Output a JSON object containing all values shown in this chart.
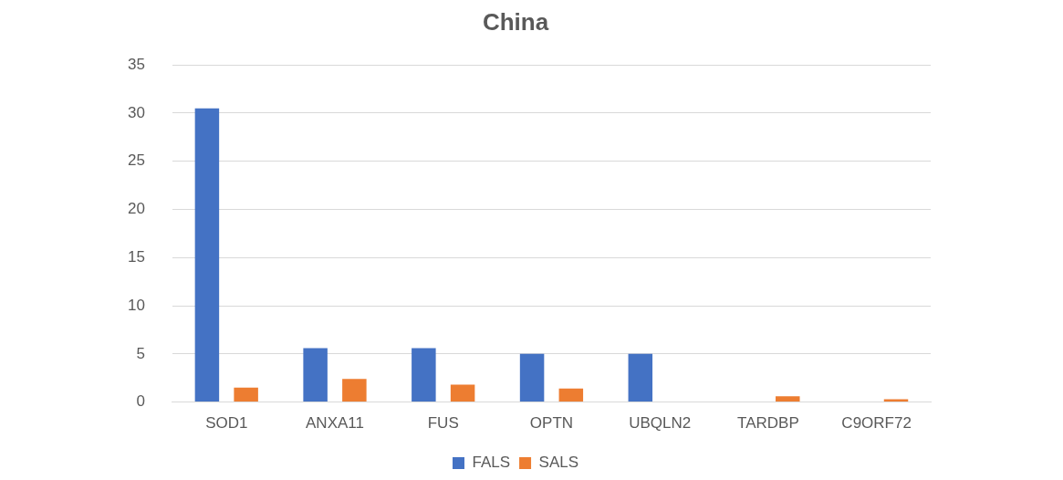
{
  "chart_data": {
    "type": "bar",
    "title": "China",
    "categories": [
      "SOD1",
      "ANXA11",
      "FUS",
      "OPTN",
      "UBQLN2",
      "TARDBP",
      "C9ORF72"
    ],
    "series": [
      {
        "name": "FALS",
        "color": "#4472c4",
        "values": [
          30.5,
          5.6,
          5.6,
          5.0,
          5.0,
          0,
          0
        ]
      },
      {
        "name": "SALS",
        "color": "#ed7d31",
        "values": [
          1.5,
          2.4,
          1.8,
          1.4,
          0,
          0.6,
          0.3
        ]
      }
    ],
    "ylim": [
      0,
      35
    ],
    "yticks": [
      0,
      5,
      10,
      15,
      20,
      25,
      30,
      35
    ],
    "grid": "y",
    "legend": "bottom"
  }
}
